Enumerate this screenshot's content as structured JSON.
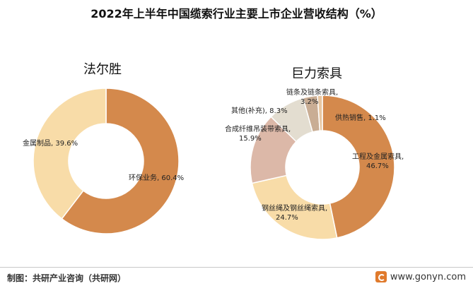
{
  "title": "2022年上半年中国缆索行业主要上市企业营收结构（%）",
  "footer": {
    "source": "制图：共研产业咨询（共研网）",
    "site": "www.gonyn.com"
  },
  "chart_data": [
    {
      "type": "pie",
      "subtitle": "法尔胜",
      "donut": true,
      "categories": [
        "环保业务",
        "金属制品"
      ],
      "values": [
        60.4,
        39.6
      ],
      "colors": [
        "#d4894c",
        "#f8dca8"
      ],
      "labels": [
        "环保业务, 60.4%",
        "金属制品, 39.6%"
      ]
    },
    {
      "type": "pie",
      "subtitle": "巨力索具",
      "donut": true,
      "categories": [
        "工程及金属索具",
        "钢丝绳及钢丝绳索具",
        "合成纤维吊装带索具",
        "其他(补充)",
        "链条及链条索具",
        "供热销售"
      ],
      "values": [
        46.7,
        24.7,
        15.9,
        8.3,
        3.2,
        1.1
      ],
      "colors": [
        "#d4894c",
        "#f8dca8",
        "#dcb8a8",
        "#e3ddd0",
        "#c9ad94",
        "#e8c7a2"
      ],
      "labels": [
        [
          "工程及金属索具,",
          "46.7%"
        ],
        [
          "钢丝绳及钢丝绳索具,",
          "24.7%"
        ],
        [
          "合成纤维吊装带索具,",
          "15.9%"
        ],
        [
          "其他(补充), 8.3%"
        ],
        [
          "链条及链条索具,",
          "3.2%"
        ],
        [
          "供热销售, 1.1%"
        ]
      ]
    }
  ]
}
